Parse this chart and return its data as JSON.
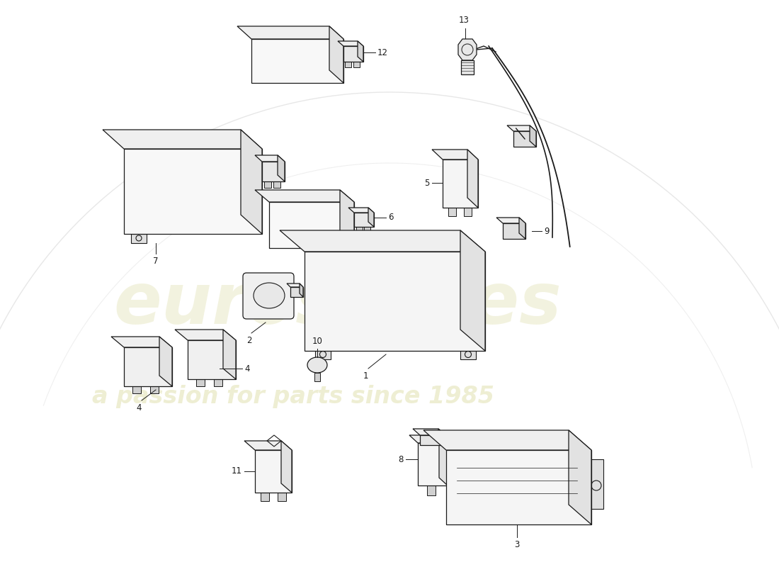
{
  "bg_color": "#ffffff",
  "line_color": "#1a1a1a",
  "label_color": "#111111",
  "watermark_color1": "#c8c870",
  "watermark_color2": "#c8c870",
  "lw": 0.9,
  "fill_front": "#f8f8f8",
  "fill_top": "#efefef",
  "fill_right": "#e2e2e2"
}
